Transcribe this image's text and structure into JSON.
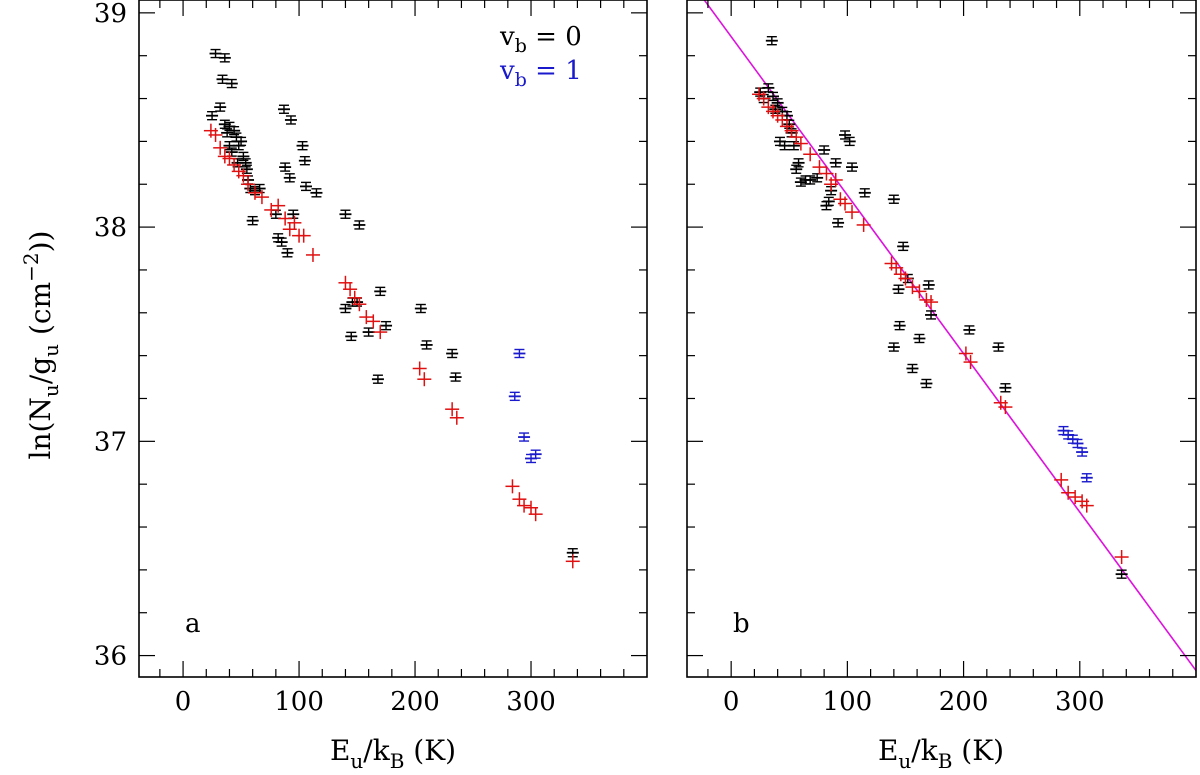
{
  "chart_data": [
    {
      "type": "scatter",
      "panel_label": "a",
      "xlabel": {
        "main": "E",
        "sub1": "u",
        "mid": "/k",
        "sub2": "B",
        "tail": " (K)"
      },
      "ylabel": {
        "pre": "ln(N",
        "sub1": "u",
        "mid": "/g",
        "sub2": "u",
        "paren": " (cm",
        "sup": "−2",
        "post": "))"
      },
      "xlim": [
        -38,
        400
      ],
      "ylim": [
        35.9,
        39.06
      ],
      "x_ticks": [
        0,
        100,
        200,
        300
      ],
      "y_ticks": [
        36,
        37,
        38,
        39
      ],
      "legend": {
        "placement": "top-right",
        "entries": [
          {
            "base": "v",
            "sub": "b",
            "text": " = 0",
            "color": "#000000"
          },
          {
            "base": "v",
            "sub": "b",
            "text": " = 1",
            "color": "#1a1acc"
          }
        ]
      },
      "series": [
        {
          "style": "errorbar",
          "color": "#000000",
          "points": [
            [
              25,
              38.52
            ],
            [
              28,
              38.81
            ],
            [
              32,
              38.56
            ],
            [
              34,
              38.69
            ],
            [
              36,
              38.79
            ],
            [
              36,
              38.48
            ],
            [
              38,
              38.44
            ],
            [
              40,
              38.47
            ],
            [
              40,
              38.38
            ],
            [
              42,
              38.67
            ],
            [
              42,
              38.35
            ],
            [
              44,
              38.45
            ],
            [
              46,
              38.42
            ],
            [
              47,
              38.3
            ],
            [
              48,
              38.38
            ],
            [
              50,
              38.4
            ],
            [
              52,
              38.33
            ],
            [
              54,
              38.3
            ],
            [
              55,
              38.27
            ],
            [
              56,
              38.22
            ],
            [
              58,
              38.18
            ],
            [
              60,
              38.03
            ],
            [
              62,
              38.17
            ],
            [
              66,
              38.18
            ],
            [
              80,
              38.06
            ],
            [
              82,
              37.95
            ],
            [
              85,
              37.93
            ],
            [
              87,
              38.55
            ],
            [
              88,
              38.28
            ],
            [
              90,
              37.88
            ],
            [
              92,
              38.23
            ],
            [
              93,
              38.5
            ],
            [
              95,
              38.06
            ],
            [
              103,
              38.38
            ],
            [
              105,
              38.31
            ],
            [
              106,
              38.19
            ],
            [
              115,
              38.16
            ],
            [
              140,
              38.06
            ],
            [
              140,
              37.62
            ],
            [
              145,
              37.49
            ],
            [
              146,
              37.65
            ],
            [
              150,
              37.65
            ],
            [
              152,
              38.01
            ],
            [
              160,
              37.51
            ],
            [
              168,
              37.29
            ],
            [
              170,
              37.7
            ],
            [
              175,
              37.54
            ],
            [
              205,
              37.62
            ],
            [
              210,
              37.45
            ],
            [
              232,
              37.41
            ],
            [
              235,
              37.3
            ],
            [
              336,
              36.48
            ]
          ]
        },
        {
          "style": "plus",
          "color": "#e01010",
          "points": [
            [
              24,
              38.45
            ],
            [
              28,
              38.43
            ],
            [
              32,
              38.37
            ],
            [
              36,
              38.33
            ],
            [
              40,
              38.32
            ],
            [
              44,
              38.29
            ],
            [
              48,
              38.26
            ],
            [
              52,
              38.24
            ],
            [
              56,
              38.2
            ],
            [
              62,
              38.16
            ],
            [
              68,
              38.14
            ],
            [
              76,
              38.08
            ],
            [
              82,
              38.1
            ],
            [
              88,
              38.04
            ],
            [
              92,
              37.99
            ],
            [
              96,
              38.02
            ],
            [
              100,
              37.96
            ],
            [
              104,
              37.96
            ],
            [
              112,
              37.87
            ],
            [
              140,
              37.74
            ],
            [
              144,
              37.71
            ],
            [
              148,
              37.67
            ],
            [
              152,
              37.64
            ],
            [
              158,
              37.58
            ],
            [
              164,
              37.56
            ],
            [
              170,
              37.51
            ],
            [
              204,
              37.34
            ],
            [
              208,
              37.29
            ],
            [
              232,
              37.15
            ],
            [
              236,
              37.11
            ],
            [
              284,
              36.79
            ],
            [
              290,
              36.73
            ],
            [
              294,
              36.7
            ],
            [
              300,
              36.69
            ],
            [
              304,
              36.66
            ],
            [
              336,
              36.44
            ]
          ]
        },
        {
          "style": "errorbar",
          "color": "#1a1acc",
          "points": [
            [
              286,
              37.21
            ],
            [
              290,
              37.41
            ],
            [
              294,
              37.02
            ],
            [
              300,
              36.92
            ],
            [
              304,
              36.94
            ]
          ]
        }
      ]
    },
    {
      "type": "scatter",
      "panel_label": "b",
      "xlabel": {
        "main": "E",
        "sub1": "u",
        "mid": "/k",
        "sub2": "B",
        "tail": " (K)"
      },
      "xlim": [
        -38,
        400
      ],
      "ylim": [
        35.9,
        39.06
      ],
      "x_ticks": [
        0,
        100,
        200,
        300
      ],
      "y_ticks": [
        36,
        37,
        38,
        39
      ],
      "fit_line": {
        "color": "#dd11dd",
        "x": [
          -38,
          400
        ],
        "y": [
          39.17,
          35.93
        ]
      },
      "series": [
        {
          "style": "errorbar",
          "color": "#000000",
          "points": [
            [
              25,
              38.63
            ],
            [
              28,
              38.6
            ],
            [
              32,
              38.65
            ],
            [
              35,
              38.87
            ],
            [
              36,
              38.61
            ],
            [
              38,
              38.55
            ],
            [
              40,
              38.58
            ],
            [
              42,
              38.4
            ],
            [
              44,
              38.54
            ],
            [
              46,
              38.38
            ],
            [
              48,
              38.52
            ],
            [
              50,
              38.48
            ],
            [
              52,
              38.44
            ],
            [
              54,
              38.38
            ],
            [
              56,
              38.27
            ],
            [
              58,
              38.3
            ],
            [
              60,
              38.21
            ],
            [
              64,
              38.22
            ],
            [
              68,
              38.22
            ],
            [
              74,
              38.23
            ],
            [
              80,
              38.36
            ],
            [
              82,
              38.1
            ],
            [
              84,
              38.12
            ],
            [
              86,
              38.17
            ],
            [
              90,
              38.3
            ],
            [
              92,
              38.02
            ],
            [
              98,
              38.43
            ],
            [
              102,
              38.4
            ],
            [
              104,
              38.28
            ],
            [
              115,
              38.16
            ],
            [
              140,
              38.13
            ],
            [
              140,
              37.44
            ],
            [
              144,
              37.71
            ],
            [
              145,
              37.54
            ],
            [
              148,
              37.91
            ],
            [
              152,
              37.76
            ],
            [
              156,
              37.34
            ],
            [
              162,
              37.48
            ],
            [
              168,
              37.27
            ],
            [
              170,
              37.73
            ],
            [
              172,
              37.59
            ],
            [
              205,
              37.52
            ],
            [
              230,
              37.44
            ],
            [
              236,
              37.25
            ],
            [
              336,
              36.38
            ]
          ]
        },
        {
          "style": "plus",
          "color": "#e01010",
          "points": [
            [
              24,
              38.62
            ],
            [
              28,
              38.6
            ],
            [
              32,
              38.56
            ],
            [
              36,
              38.54
            ],
            [
              40,
              38.52
            ],
            [
              44,
              38.5
            ],
            [
              48,
              38.47
            ],
            [
              52,
              38.45
            ],
            [
              56,
              38.42
            ],
            [
              60,
              38.39
            ],
            [
              68,
              38.34
            ],
            [
              76,
              38.28
            ],
            [
              82,
              38.25
            ],
            [
              86,
              38.2
            ],
            [
              90,
              38.22
            ],
            [
              94,
              38.13
            ],
            [
              98,
              38.11
            ],
            [
              104,
              38.07
            ],
            [
              114,
              38.01
            ],
            [
              138,
              37.83
            ],
            [
              142,
              37.81
            ],
            [
              146,
              37.78
            ],
            [
              150,
              37.76
            ],
            [
              156,
              37.72
            ],
            [
              162,
              37.7
            ],
            [
              168,
              37.66
            ],
            [
              172,
              37.65
            ],
            [
              202,
              37.41
            ],
            [
              206,
              37.37
            ],
            [
              232,
              37.18
            ],
            [
              236,
              37.16
            ],
            [
              284,
              36.82
            ],
            [
              290,
              36.76
            ],
            [
              296,
              36.74
            ],
            [
              302,
              36.72
            ],
            [
              306,
              36.7
            ],
            [
              336,
              36.46
            ]
          ]
        },
        {
          "style": "errorbar",
          "color": "#1a1acc",
          "points": [
            [
              286,
              37.05
            ],
            [
              290,
              37.03
            ],
            [
              294,
              37.01
            ],
            [
              298,
              36.99
            ],
            [
              302,
              36.95
            ],
            [
              306,
              36.83
            ]
          ]
        }
      ]
    }
  ]
}
